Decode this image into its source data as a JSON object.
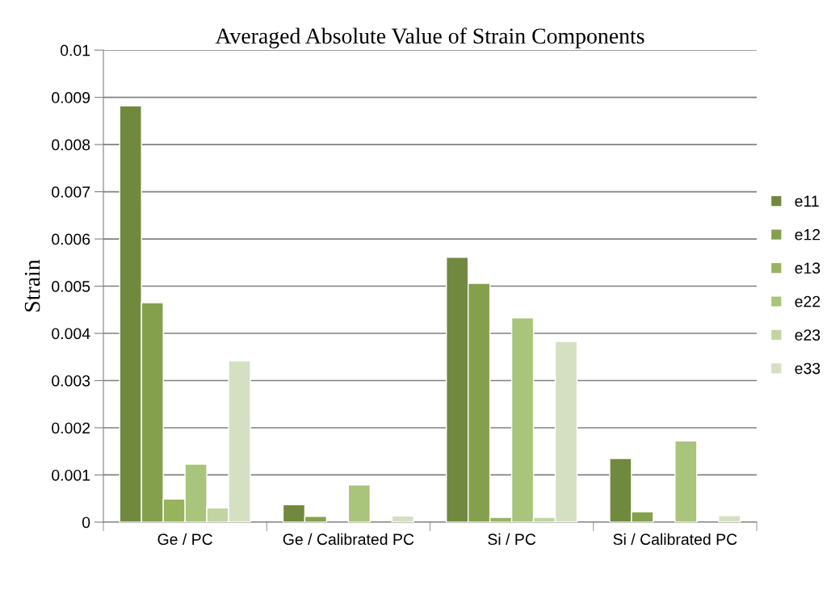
{
  "chart_data": {
    "type": "bar",
    "title": "Averaged Absolute Value of Strain Components",
    "ylabel": "Strain",
    "categories": [
      "Ge / PC",
      "Ge / Calibrated PC",
      "Si / PC",
      "Si / Calibrated PC"
    ],
    "series": [
      {
        "name": "e11",
        "color": "#71893f",
        "values": [
          0.00882,
          0.00037,
          0.00561,
          0.00135
        ]
      },
      {
        "name": "e12",
        "color": "#84a04c",
        "values": [
          0.00465,
          0.00012,
          0.00506,
          0.00022
        ]
      },
      {
        "name": "e13",
        "color": "#97b35c",
        "values": [
          0.00049,
          null,
          0.0001,
          null
        ]
      },
      {
        "name": "e22",
        "color": "#a9c47b",
        "values": [
          0.00123,
          0.00079,
          0.00433,
          0.00172
        ]
      },
      {
        "name": "e23",
        "color": "#c2d4a2",
        "values": [
          0.0003,
          null,
          0.0001,
          null
        ]
      },
      {
        "name": "e33",
        "color": "#d5e0c2",
        "values": [
          0.00342,
          0.00013,
          0.00383,
          0.00014
        ]
      }
    ],
    "ylim": [
      0,
      0.01
    ],
    "yticks": [
      0,
      0.001,
      0.002,
      0.003,
      0.004,
      0.005,
      0.006,
      0.007,
      0.008,
      0.009,
      0.01
    ],
    "grid": "y",
    "legend": "right"
  }
}
